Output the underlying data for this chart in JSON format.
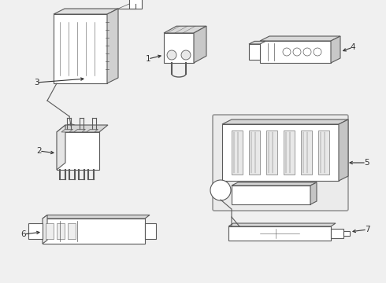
{
  "bg_color": "#f0f0f0",
  "line_color": "#5a5a5a",
  "label_color": "#333333",
  "lw": 0.8,
  "fig_w": 4.9,
  "fig_h": 3.6,
  "dpi": 100
}
